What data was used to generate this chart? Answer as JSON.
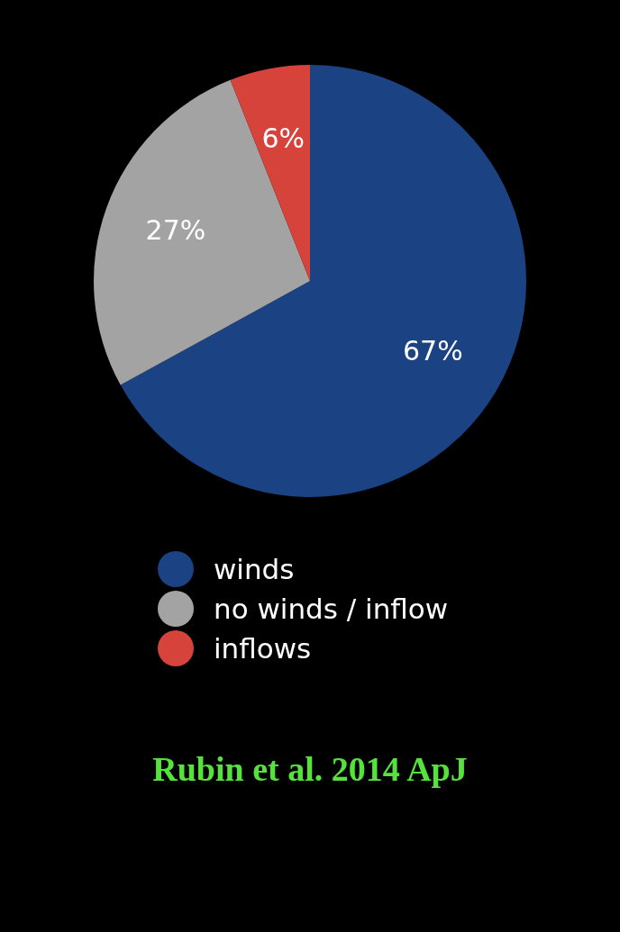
{
  "chart_data": {
    "type": "pie",
    "categories": [
      "winds",
      "no winds / inflow",
      "inflows"
    ],
    "values": [
      67,
      27,
      6
    ],
    "colors": [
      "#1b4282",
      "#a3a3a3",
      "#d6433b"
    ],
    "value_labels": [
      "67%",
      "27%",
      "6%"
    ],
    "legend": "bottom",
    "annotations": [
      "Rubin et al. 2014 ApJ"
    ]
  }
}
